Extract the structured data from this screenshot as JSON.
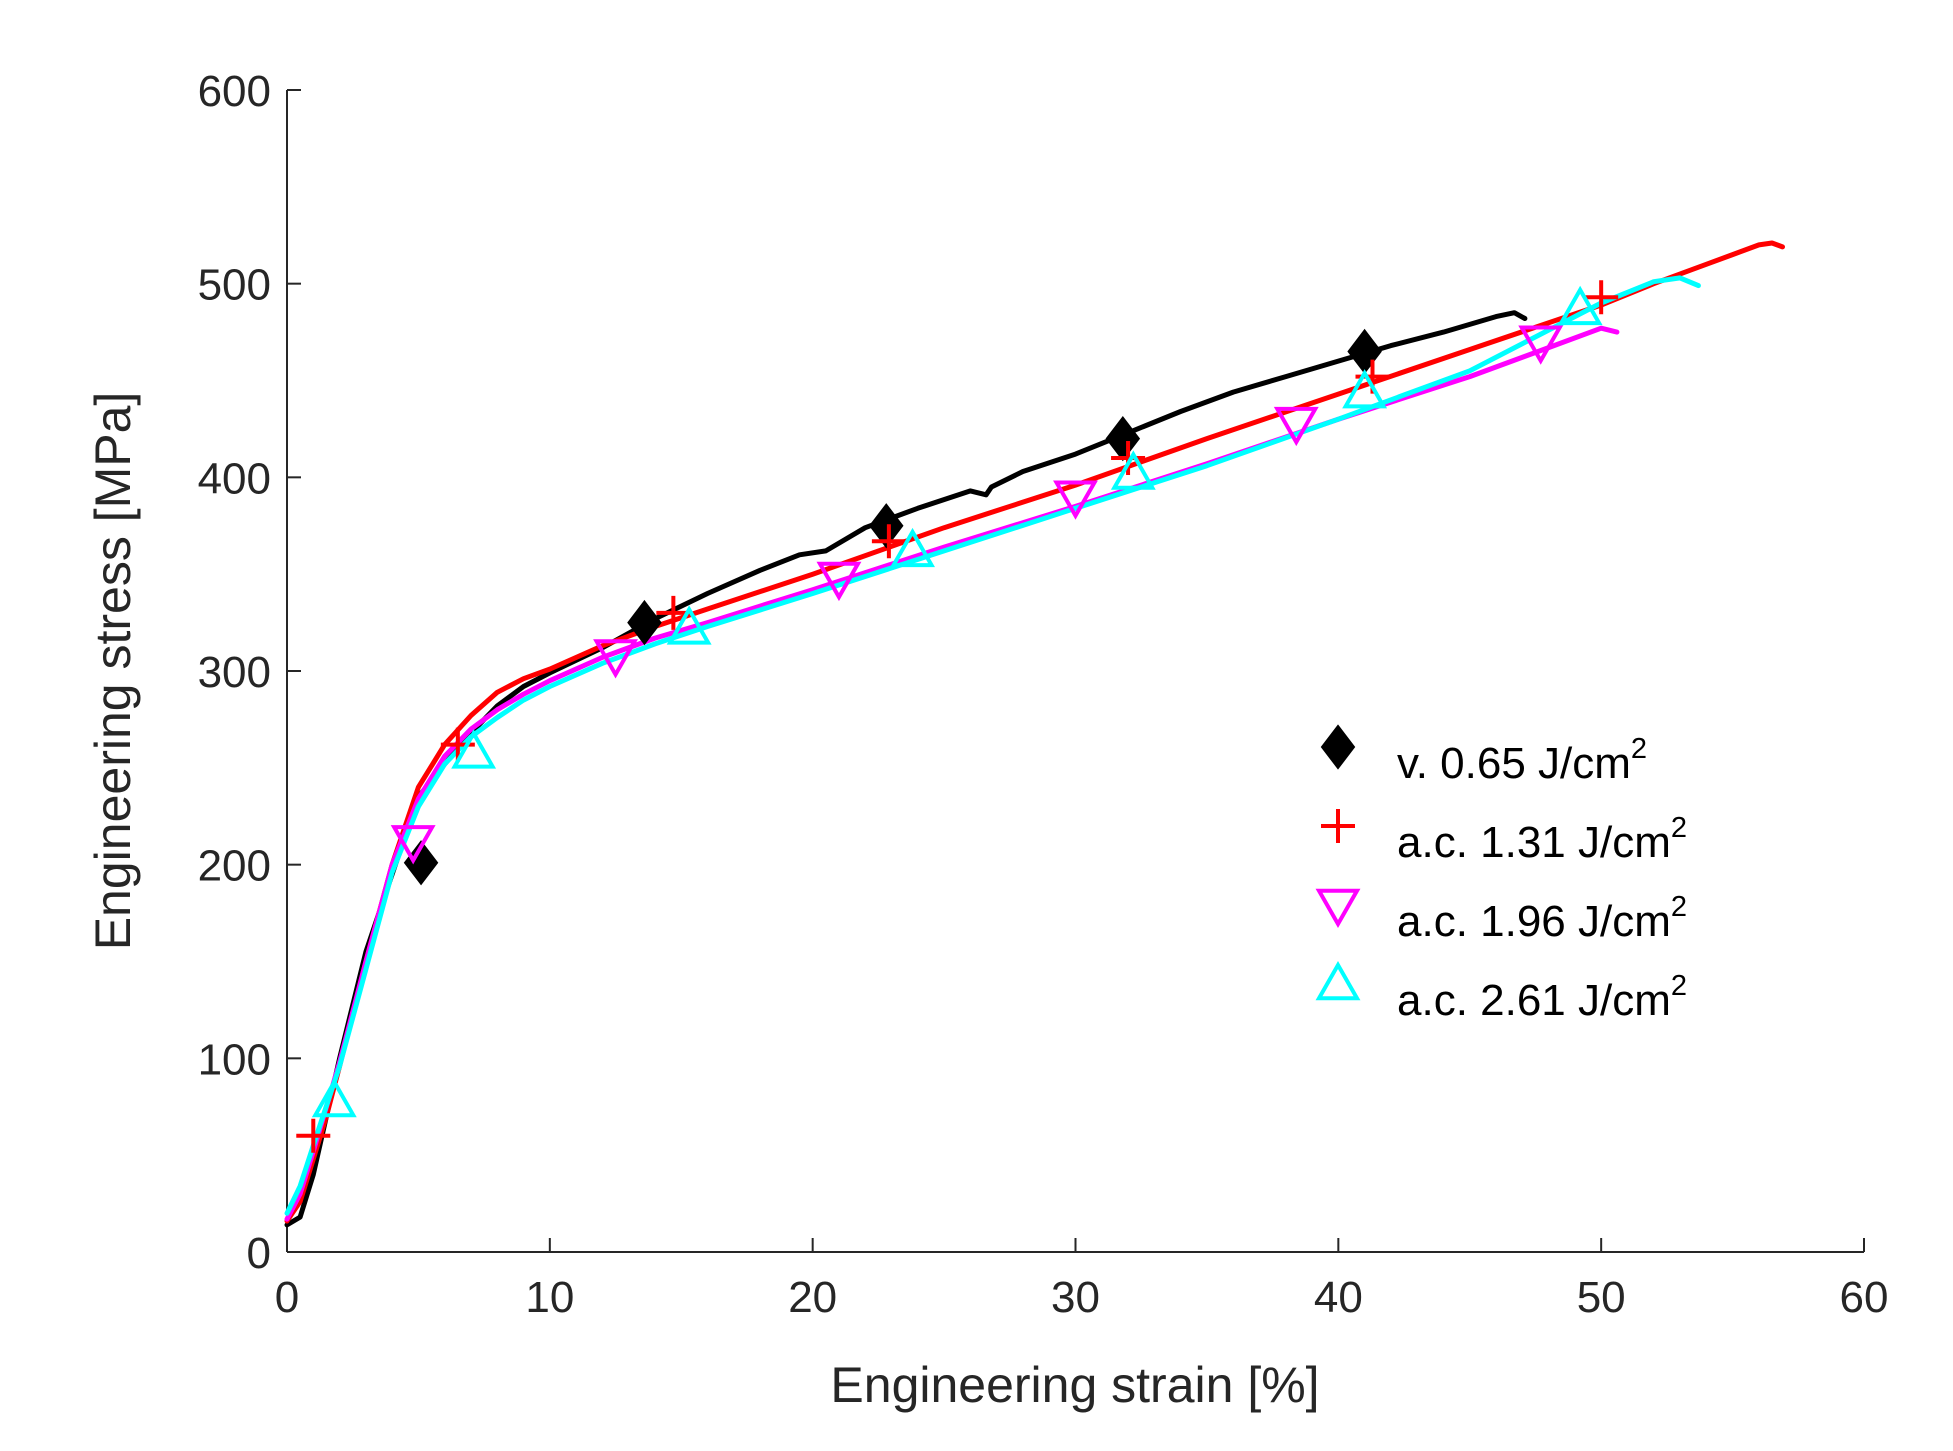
{
  "chart_data": {
    "type": "line",
    "title": "",
    "xlabel": "Engineering strain [%]",
    "ylabel": "Engineering stress [MPa]",
    "xlim": [
      0,
      60
    ],
    "ylim": [
      0,
      600
    ],
    "xticks": [
      0,
      10,
      20,
      30,
      40,
      50,
      60
    ],
    "yticks": [
      0,
      100,
      200,
      300,
      400,
      500,
      600
    ],
    "grid": false,
    "legend_position": "center-right",
    "series": [
      {
        "name": "v.    0.65 J/cm2",
        "legend_main": "v.    0.65 J/cm",
        "legend_sup": "2",
        "color": "#000000",
        "marker": "diamond",
        "x": [
          0,
          0.5,
          1,
          1.5,
          2,
          3,
          4,
          5,
          6,
          7,
          8,
          9,
          10,
          12,
          14,
          16,
          18,
          19.5,
          20.5,
          22,
          24,
          26,
          26.6,
          26.8,
          28,
          30,
          32,
          34,
          36,
          38,
          40,
          42,
          44,
          46,
          46.7,
          47.1
        ],
        "y": [
          14,
          18,
          40,
          70,
          100,
          155,
          195,
          235,
          252,
          268,
          282,
          292,
          299,
          312,
          327,
          340,
          352,
          360,
          362,
          374,
          384,
          393,
          391,
          395,
          403,
          412,
          423,
          434,
          444,
          452,
          460,
          468,
          475,
          483,
          485,
          482
        ],
        "marker_points": [
          [
            5.1,
            201
          ],
          [
            13.6,
            325
          ],
          [
            22.8,
            375
          ],
          [
            31.8,
            420
          ],
          [
            41.0,
            465
          ]
        ]
      },
      {
        "name": "a.c. 1.31 J/cm2",
        "legend_main": "a.c. 1.31 J/cm",
        "legend_sup": "2",
        "color": "#ff0000",
        "marker": "plus",
        "x": [
          0,
          0.5,
          1,
          1.5,
          2,
          3,
          4,
          5,
          6,
          7,
          8,
          9,
          10,
          12,
          14,
          16,
          20,
          25,
          30,
          35,
          40,
          45,
          50,
          52,
          54,
          55,
          56,
          56.5,
          56.9
        ],
        "y": [
          16,
          26,
          48,
          70,
          96,
          150,
          200,
          240,
          262,
          277,
          289,
          296,
          301,
          313,
          323,
          332,
          350,
          374,
          396,
          420,
          443,
          466,
          489,
          500,
          510,
          515,
          520,
          521,
          519
        ],
        "marker_points": [
          [
            1.0,
            60
          ],
          [
            6.5,
            262
          ],
          [
            14.7,
            330
          ],
          [
            22.9,
            367
          ],
          [
            32.0,
            410
          ],
          [
            41.3,
            452
          ],
          [
            50.0,
            493
          ]
        ]
      },
      {
        "name": "a.c. 1.96 J/cm2",
        "legend_main": "a.c. 1.96 J/cm",
        "legend_sup": "2",
        "color": "#ff00ff",
        "marker": "triangle-down",
        "x": [
          0,
          0.5,
          1,
          2,
          3,
          4,
          5,
          6,
          7,
          8,
          9,
          10,
          12,
          14,
          16,
          20,
          25,
          30,
          35,
          40,
          45,
          48,
          50,
          50.6
        ],
        "y": [
          17,
          30,
          52,
          98,
          150,
          200,
          234,
          256,
          270,
          280,
          288,
          295,
          307,
          317,
          325,
          342,
          364,
          385,
          407,
          430,
          452,
          467,
          477,
          475
        ],
        "marker_points": [
          [
            4.8,
            212
          ],
          [
            12.5,
            308
          ],
          [
            21.0,
            348
          ],
          [
            30.0,
            390
          ],
          [
            38.4,
            428
          ],
          [
            47.7,
            470
          ]
        ]
      },
      {
        "name": "a.c. 2.61 J/cm2",
        "legend_main": "a.c. 2.61 J/cm",
        "legend_sup": "2",
        "color": "#00ffff",
        "marker": "triangle-up",
        "x": [
          0,
          0.5,
          1,
          2,
          3,
          4,
          5,
          6,
          7,
          8,
          9,
          10,
          12,
          14,
          16,
          20,
          25,
          30,
          35,
          40,
          45,
          50,
          52,
          53,
          53.7
        ],
        "y": [
          20,
          34,
          55,
          96,
          146,
          196,
          230,
          252,
          266,
          276,
          285,
          292,
          304,
          314,
          323,
          340,
          362,
          384,
          406,
          430,
          455,
          490,
          501,
          503,
          499
        ],
        "marker_points": [
          [
            1.8,
            78
          ],
          [
            7.1,
            258
          ],
          [
            15.3,
            322
          ],
          [
            23.8,
            362
          ],
          [
            32.2,
            402
          ],
          [
            41.0,
            444
          ],
          [
            49.2,
            487
          ]
        ]
      }
    ]
  }
}
